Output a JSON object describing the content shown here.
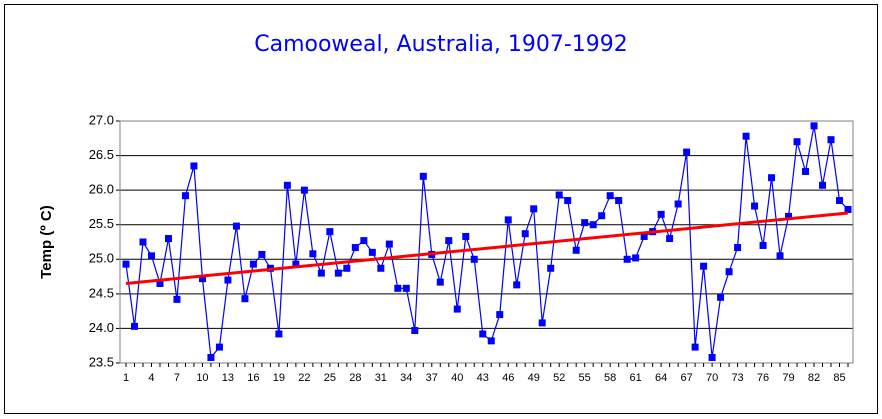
{
  "chart_data": {
    "type": "line",
    "title": "Camooweal, Australia, 1907-1992",
    "y_label": "Temp (º C)",
    "categories": [
      1,
      null,
      null,
      4,
      null,
      null,
      7,
      null,
      null,
      10,
      null,
      null,
      13,
      null,
      null,
      16,
      null,
      null,
      19,
      null,
      null,
      22,
      null,
      null,
      25,
      null,
      null,
      28,
      null,
      null,
      31,
      null,
      null,
      34,
      null,
      null,
      37,
      null,
      null,
      40,
      null,
      null,
      43,
      null,
      null,
      46,
      null,
      null,
      49,
      null,
      null,
      52,
      null,
      null,
      55,
      null,
      null,
      58,
      null,
      null,
      61,
      null,
      null,
      64,
      null,
      null,
      67,
      null,
      null,
      70,
      null,
      null,
      73,
      null,
      null,
      76,
      null,
      null,
      79,
      null,
      null,
      82,
      null,
      null,
      85,
      null
    ],
    "series": [
      {
        "color": "#0000ff",
        "values": [
          24.93,
          24.03,
          25.25,
          25.05,
          24.65,
          25.3,
          24.42,
          25.92,
          26.35,
          24.72,
          23.58,
          23.73,
          24.7,
          25.48,
          24.43,
          24.93,
          25.07,
          24.87,
          23.92,
          26.07,
          24.93,
          26.0,
          25.08,
          24.8,
          25.4,
          24.8,
          24.87,
          25.17,
          25.27,
          25.1,
          24.87,
          25.22,
          24.58,
          24.58,
          23.97,
          26.2,
          25.07,
          24.67,
          25.27,
          24.28,
          25.33,
          25.0,
          23.92,
          23.82,
          24.2,
          25.57,
          24.63,
          25.37,
          25.73,
          24.08,
          24.87,
          25.93,
          25.85,
          25.13,
          25.53,
          25.5,
          25.63,
          25.92,
          25.85,
          25.0,
          25.02,
          25.33,
          25.4,
          25.65,
          25.3,
          25.8,
          26.55,
          23.73,
          24.9,
          23.58,
          24.45,
          24.82,
          25.17,
          26.78,
          25.77,
          25.2,
          26.18,
          25.05,
          25.62,
          26.7,
          26.27,
          26.93,
          26.07,
          26.73,
          25.85,
          25.72
        ]
      }
    ],
    "trendline": {
      "color": "#ff0000",
      "x": [
        1,
        86
      ],
      "values": [
        24.65,
        25.67
      ]
    },
    "ylim": [
      23.5,
      27.0
    ],
    "yticks": [
      23.5,
      {
        "value": 24,
        "label": "24.0"
      },
      24.5,
      {
        "value": 25,
        "label": "25.0"
      },
      25.5,
      {
        "value": 26,
        "label": "26.0"
      },
      26.5,
      {
        "value": 27,
        "label": "27.0"
      }
    ],
    "grid": true
  }
}
